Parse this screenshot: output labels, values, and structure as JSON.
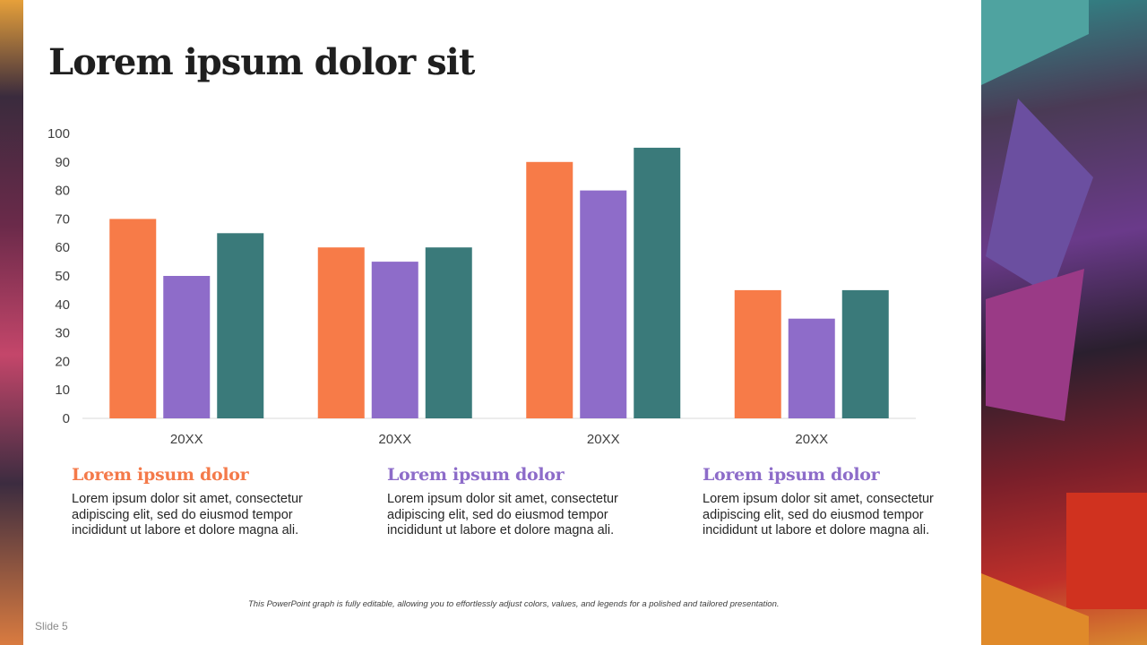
{
  "slide": {
    "title": "Lorem ipsum dolor sit",
    "slide_number": "Slide 5",
    "footnote": "This PowerPoint graph is fully editable, allowing you to effortlessly adjust colors, values, and legends for a polished and tailored presentation."
  },
  "columns": [
    {
      "heading": "Lorem ipsum dolor",
      "body": "Lorem ipsum dolor sit amet, consectetur adipiscing elit, sed do eiusmod tempor incididunt ut labore et dolore magna ali.",
      "color": "#F47A4A"
    },
    {
      "heading": "Lorem ipsum dolor",
      "body": "Lorem ipsum dolor sit amet, consectetur adipiscing elit, sed do eiusmod tempor incididunt ut labore et dolore magna ali.",
      "color": "#8D6CC9"
    },
    {
      "heading": "Lorem ipsum dolor",
      "body": "Lorem ipsum dolor sit amet, consectetur adipiscing elit, sed do eiusmod tempor incididunt ut labore et dolore magna ali.",
      "color": "#8D6CC9"
    }
  ],
  "chart_data": {
    "type": "bar",
    "categories": [
      "20XX",
      "20XX",
      "20XX",
      "20XX"
    ],
    "series": [
      {
        "values": [
          70,
          60,
          90,
          45
        ],
        "color": "#F77B48"
      },
      {
        "values": [
          50,
          55,
          80,
          35
        ],
        "color": "#8E6CC9"
      },
      {
        "values": [
          65,
          60,
          95,
          45
        ],
        "color": "#3A7A7A"
      }
    ],
    "ylim": [
      0,
      100
    ],
    "yticks": [
      0,
      10,
      20,
      30,
      40,
      50,
      60,
      70,
      80,
      90,
      100
    ],
    "grid": false,
    "legend": "none"
  }
}
